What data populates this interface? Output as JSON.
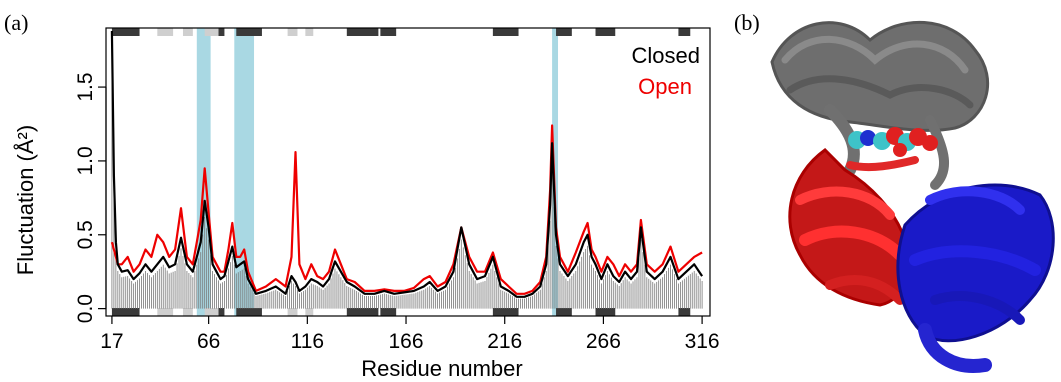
{
  "panel_labels": {
    "a": "(a)",
    "b": "(b)"
  },
  "chart_data": {
    "type": "line",
    "title": "",
    "xlabel": "Residue number",
    "ylabel": "Fluctuation (Å²)",
    "xlim": [
      14,
      320
    ],
    "ylim": [
      -0.05,
      1.9
    ],
    "xticks": [
      17,
      66,
      116,
      166,
      216,
      266,
      316
    ],
    "yticks": [
      0.0,
      0.5,
      1.0,
      1.5
    ],
    "ytick_labels": [
      "0.0",
      "0.5",
      "1.0",
      "1.5"
    ],
    "grid": false,
    "legend_position": "top-right",
    "series_colors": {
      "closed": "#000000",
      "open": "#ee0000"
    },
    "highlight_color": "#a9d8e3",
    "highlight_regions": [
      [
        60,
        67
      ],
      [
        79,
        89
      ],
      [
        240,
        243
      ]
    ],
    "secondary_structure": {
      "dark_color": "#3a3a3a",
      "light_color": "#cfcfcf",
      "dark": [
        [
          17,
          31
        ],
        [
          71,
          74
        ],
        [
          80,
          93
        ],
        [
          136,
          152
        ],
        [
          153,
          161
        ],
        [
          210,
          223
        ],
        [
          242,
          250
        ],
        [
          262,
          272
        ],
        [
          304,
          310
        ]
      ],
      "light": [
        [
          40,
          48
        ],
        [
          53,
          58
        ],
        [
          64,
          71
        ],
        [
          106,
          111
        ],
        [
          115,
          119
        ]
      ]
    },
    "series": [
      {
        "name": "Closed",
        "color": "#000000",
        "x": [
          17,
          18,
          19,
          20,
          22,
          25,
          28,
          31,
          34,
          37,
          40,
          43,
          46,
          49,
          52,
          55,
          58,
          60,
          62,
          64,
          66,
          68,
          70,
          72,
          74,
          76,
          78,
          80,
          82,
          84,
          86,
          90,
          95,
          100,
          105,
          108,
          110,
          112,
          115,
          118,
          121,
          124,
          127,
          130,
          133,
          136,
          140,
          145,
          150,
          155,
          160,
          165,
          170,
          175,
          178,
          182,
          186,
          190,
          194,
          198,
          202,
          206,
          210,
          214,
          218,
          222,
          226,
          230,
          234,
          237,
          239,
          240,
          242,
          244,
          248,
          252,
          256,
          258,
          260,
          262,
          265,
          268,
          271,
          274,
          277,
          280,
          283,
          285,
          288,
          292,
          296,
          300,
          304,
          308,
          312,
          316
        ],
        "values": [
          1.88,
          0.9,
          0.45,
          0.3,
          0.25,
          0.26,
          0.2,
          0.24,
          0.3,
          0.25,
          0.3,
          0.35,
          0.28,
          0.3,
          0.48,
          0.3,
          0.25,
          0.35,
          0.45,
          0.73,
          0.55,
          0.3,
          0.25,
          0.2,
          0.22,
          0.32,
          0.42,
          0.28,
          0.3,
          0.32,
          0.2,
          0.1,
          0.12,
          0.15,
          0.1,
          0.22,
          0.18,
          0.12,
          0.15,
          0.2,
          0.18,
          0.15,
          0.2,
          0.32,
          0.25,
          0.18,
          0.15,
          0.1,
          0.1,
          0.12,
          0.1,
          0.11,
          0.12,
          0.15,
          0.18,
          0.12,
          0.15,
          0.25,
          0.55,
          0.3,
          0.2,
          0.22,
          0.35,
          0.15,
          0.12,
          0.08,
          0.08,
          0.1,
          0.15,
          0.3,
          0.7,
          1.12,
          0.5,
          0.3,
          0.22,
          0.3,
          0.45,
          0.5,
          0.35,
          0.3,
          0.2,
          0.3,
          0.22,
          0.18,
          0.25,
          0.2,
          0.25,
          0.55,
          0.25,
          0.2,
          0.25,
          0.35,
          0.2,
          0.25,
          0.3,
          0.22
        ]
      },
      {
        "name": "Open",
        "color": "#ee0000",
        "x": [
          17,
          18,
          19,
          20,
          22,
          25,
          28,
          31,
          34,
          37,
          40,
          43,
          46,
          49,
          52,
          55,
          58,
          60,
          62,
          64,
          66,
          68,
          70,
          72,
          74,
          76,
          78,
          80,
          82,
          84,
          86,
          90,
          95,
          100,
          105,
          108,
          110,
          112,
          115,
          118,
          121,
          124,
          127,
          130,
          133,
          136,
          140,
          145,
          150,
          155,
          160,
          165,
          170,
          175,
          178,
          182,
          186,
          190,
          194,
          198,
          202,
          206,
          210,
          214,
          218,
          222,
          226,
          230,
          234,
          237,
          239,
          240,
          242,
          244,
          248,
          252,
          256,
          258,
          260,
          262,
          265,
          268,
          271,
          274,
          277,
          280,
          283,
          285,
          288,
          292,
          296,
          300,
          304,
          308,
          312,
          316
        ],
        "values": [
          0.45,
          0.4,
          0.35,
          0.3,
          0.3,
          0.35,
          0.25,
          0.3,
          0.4,
          0.35,
          0.5,
          0.45,
          0.35,
          0.4,
          0.68,
          0.35,
          0.3,
          0.45,
          0.6,
          0.95,
          0.65,
          0.35,
          0.3,
          0.25,
          0.25,
          0.4,
          0.58,
          0.35,
          0.35,
          0.4,
          0.25,
          0.12,
          0.15,
          0.2,
          0.15,
          0.35,
          1.06,
          0.3,
          0.2,
          0.3,
          0.22,
          0.2,
          0.25,
          0.4,
          0.3,
          0.2,
          0.18,
          0.12,
          0.12,
          0.13,
          0.12,
          0.12,
          0.14,
          0.2,
          0.22,
          0.15,
          0.18,
          0.3,
          0.55,
          0.35,
          0.25,
          0.25,
          0.38,
          0.2,
          0.15,
          0.1,
          0.1,
          0.12,
          0.18,
          0.35,
          0.8,
          1.24,
          0.55,
          0.35,
          0.25,
          0.38,
          0.52,
          0.58,
          0.4,
          0.35,
          0.25,
          0.35,
          0.3,
          0.22,
          0.3,
          0.25,
          0.3,
          0.6,
          0.3,
          0.25,
          0.3,
          0.42,
          0.25,
          0.3,
          0.35,
          0.38
        ]
      }
    ]
  }
}
